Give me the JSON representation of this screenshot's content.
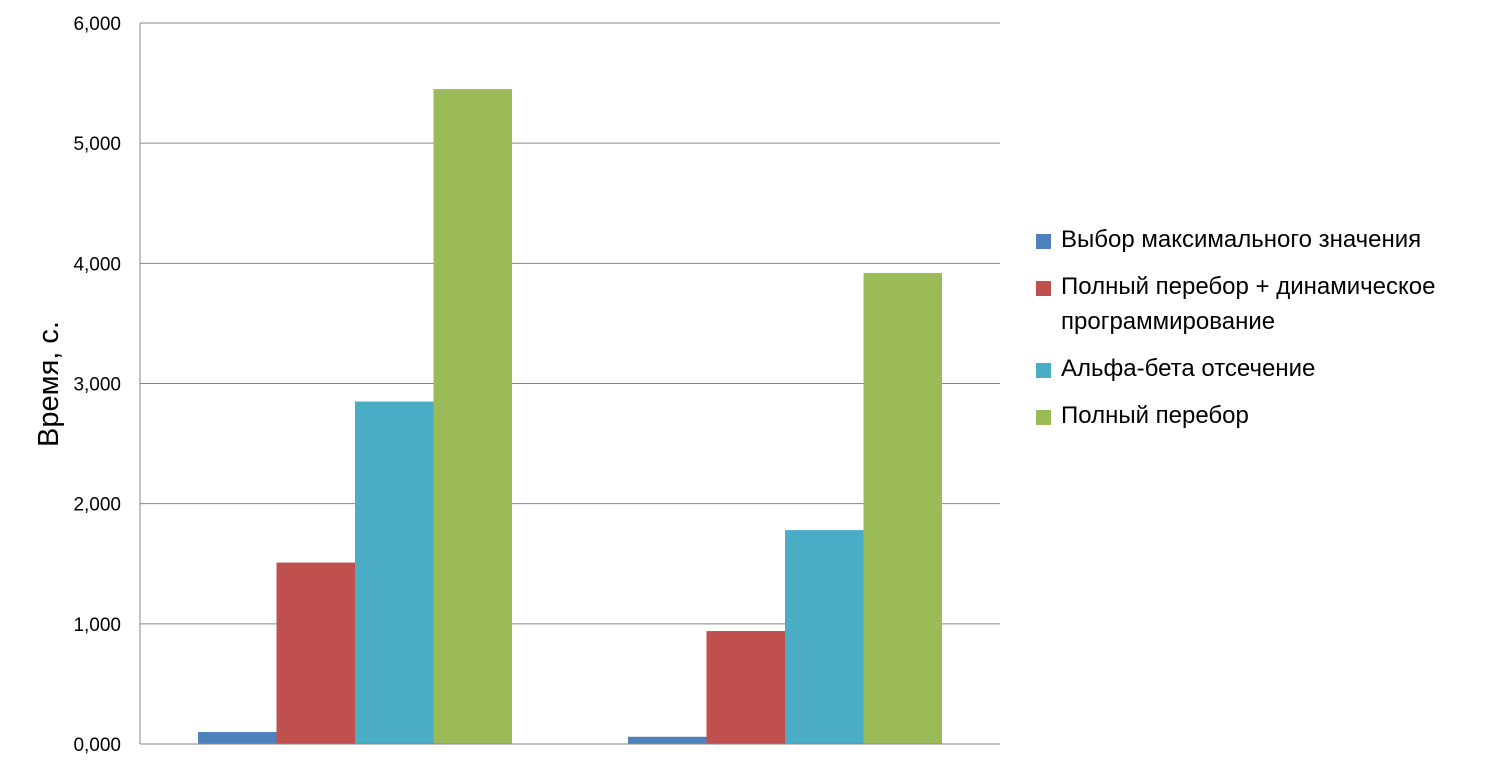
{
  "chart_data": {
    "type": "bar",
    "title": "",
    "xlabel": "",
    "ylabel": "Время, с.",
    "ylim": [
      0,
      6
    ],
    "yticks": [
      "0,000",
      "1,000",
      "2,000",
      "3,000",
      "4,000",
      "5,000",
      "6,000"
    ],
    "grid": true,
    "legend_position": "right",
    "categories": [
      "",
      ""
    ],
    "series": [
      {
        "name": "Выбор максимального значения",
        "color": "#4F81BD",
        "values": [
          0.1,
          0.06
        ]
      },
      {
        "name": "Полный перебор + динамическое программирование",
        "color": "#C0504D",
        "values": [
          1.51,
          0.94
        ]
      },
      {
        "name": "Альфа-бета отсечение",
        "color": "#4BACC6",
        "values": [
          2.85,
          1.78
        ]
      },
      {
        "name": "Полный перебор",
        "color": "#9BBB59",
        "values": [
          5.45,
          3.92
        ]
      }
    ]
  }
}
